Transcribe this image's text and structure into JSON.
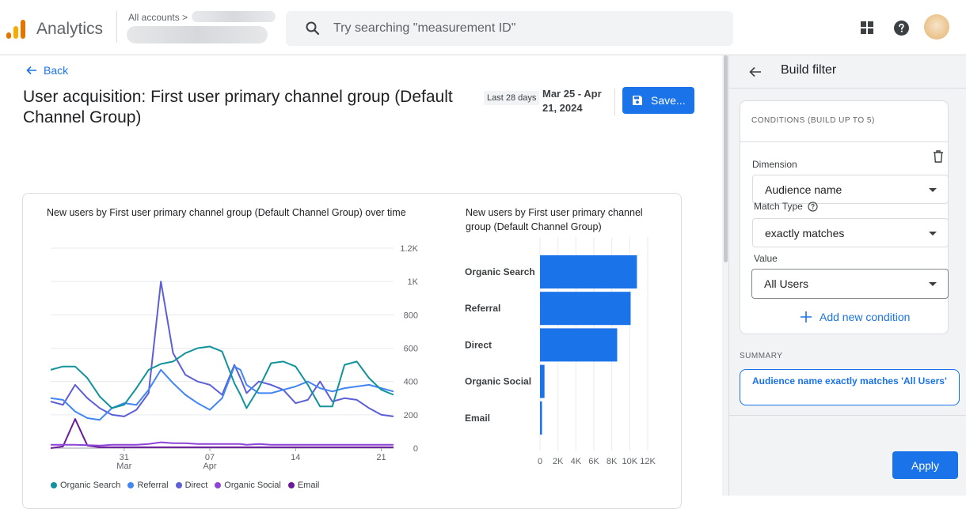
{
  "header": {
    "app_title": "Analytics",
    "accounts_label": "All accounts >",
    "search_placeholder": "Try searching \"measurement ID\""
  },
  "main": {
    "back_label": "Back",
    "page_title": "User acquisition: First user primary channel group (Default Channel Group)",
    "date_range_label": "Last 28 days",
    "date_range": "Mar 25 - Apr 21, 2024",
    "save_label": "Save..."
  },
  "line_chart": {
    "title": "New users by First user primary channel group (Default Channel Group) over time",
    "legend": [
      "Organic Search",
      "Referral",
      "Direct",
      "Organic Social",
      "Email"
    ]
  },
  "bar_chart": {
    "title": "New users by First user primary channel group (Default Channel Group)"
  },
  "chart_data": [
    {
      "type": "line",
      "title": "New users by First user primary channel group (Default Channel Group) over time",
      "x_ticks": [
        {
          "day": 7,
          "label": "31",
          "sub": "Mar"
        },
        {
          "day": 14,
          "label": "07",
          "sub": "Apr"
        },
        {
          "day": 21,
          "label": "14",
          "sub": ""
        },
        {
          "day": 28,
          "label": "21",
          "sub": ""
        }
      ],
      "y_ticks": [
        "0",
        "200",
        "400",
        "600",
        "800",
        "1K",
        "1.2K"
      ],
      "ylim": [
        0,
        1200
      ],
      "x": [
        1,
        2,
        3,
        4,
        5,
        6,
        7,
        8,
        9,
        10,
        11,
        12,
        13,
        14,
        15,
        16,
        16.5,
        17,
        18,
        19,
        20,
        21,
        22,
        23,
        24,
        25,
        26,
        27,
        28,
        29
      ],
      "series": [
        {
          "name": "Organic Search",
          "color": "#12939a",
          "values": [
            470,
            490,
            490,
            420,
            310,
            240,
            260,
            360,
            470,
            505,
            520,
            570,
            600,
            610,
            580,
            390,
            320,
            240,
            360,
            510,
            520,
            490,
            380,
            250,
            250,
            500,
            520,
            420,
            350,
            320
          ]
        },
        {
          "name": "Referral",
          "color": "#4285f4",
          "values": [
            300,
            290,
            220,
            180,
            170,
            240,
            270,
            260,
            350,
            470,
            390,
            320,
            270,
            230,
            300,
            490,
            470,
            380,
            330,
            330,
            350,
            370,
            400,
            360,
            340,
            360,
            370,
            380,
            360,
            340
          ]
        },
        {
          "name": "Direct",
          "color": "#5c5fd6",
          "values": [
            280,
            260,
            380,
            300,
            240,
            200,
            190,
            230,
            330,
            1000,
            570,
            440,
            400,
            380,
            320,
            500,
            420,
            330,
            400,
            380,
            350,
            270,
            290,
            400,
            280,
            300,
            290,
            240,
            200,
            190
          ]
        },
        {
          "name": "Organic Social",
          "color": "#8e44d6",
          "values": [
            20,
            20,
            20,
            18,
            15,
            20,
            20,
            20,
            25,
            35,
            30,
            30,
            25,
            25,
            25,
            25,
            25,
            20,
            25,
            20,
            20,
            20,
            20,
            20,
            20,
            20,
            20,
            20,
            20,
            20
          ]
        },
        {
          "name": "Email",
          "color": "#6a1b9a",
          "values": [
            0,
            10,
            175,
            15,
            5,
            5,
            5,
            5,
            5,
            5,
            5,
            5,
            5,
            5,
            5,
            5,
            5,
            5,
            5,
            5,
            5,
            5,
            5,
            5,
            5,
            5,
            5,
            5,
            5,
            5
          ]
        }
      ]
    },
    {
      "type": "bar",
      "orientation": "horizontal",
      "title": "New users by First user primary channel group (Default Channel Group)",
      "categories": [
        "Organic Search",
        "Referral",
        "Direct",
        "Organic Social",
        "Email"
      ],
      "values": [
        10800,
        10100,
        8600,
        500,
        200
      ],
      "x_ticks": [
        "0",
        "2K",
        "4K",
        "6K",
        "8K",
        "10K",
        "12K"
      ],
      "xlim": [
        0,
        12000
      ],
      "bar_color": "#1a73e8"
    }
  ],
  "panel": {
    "title": "Build filter",
    "conditions_header": "CONDITIONS (BUILD UP TO 5)",
    "dimension_label": "Dimension",
    "dimension_value": "Audience name",
    "match_type_label": "Match Type",
    "match_type_value": "exactly matches",
    "value_label": "Value",
    "value_value": "All Users",
    "add_condition_label": "Add new condition",
    "summary_label": "SUMMARY",
    "summary_text": "Audience name exactly matches 'All Users'",
    "apply_label": "Apply"
  }
}
